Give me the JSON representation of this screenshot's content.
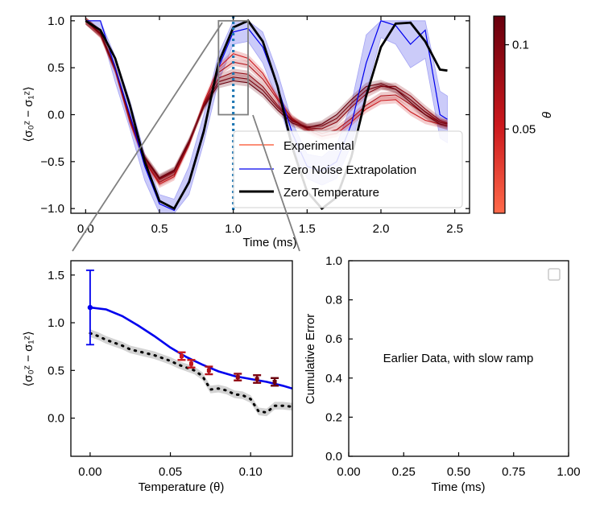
{
  "colors": {
    "experimental_light": "#fb6a4a",
    "experimental_dark": "#67000d",
    "zne": "#0000ee",
    "zne_band": "#6b6bee",
    "zero_temperature": "#000000",
    "marker_line": "#1f77b4",
    "inset_box": "#808080",
    "sim_band": "#c8c8c8"
  },
  "chart_data": [
    {
      "type": "line",
      "xlabel": "Time (ms)",
      "ylabel": "⟨σ₀ᶻ − σ₁ᶻ⟩",
      "xlim": [
        -0.1,
        2.6
      ],
      "ylim": [
        -1.05,
        1.05
      ],
      "xticks": [
        "0.0",
        "0.5",
        "1.0",
        "1.5",
        "2.0",
        "2.5"
      ],
      "yticks": [
        "−1.0",
        "−0.5",
        "0.0",
        "0.5",
        "1.0"
      ],
      "legend_position": "lower-right",
      "legend": [
        "Experimental",
        "Zero Noise Extrapolation",
        "Zero Temperature"
      ],
      "vertical_marker_x": 1.0,
      "zoom_box": {
        "x": [
          0.9,
          1.1
        ],
        "y": [
          0.0,
          1.0
        ]
      },
      "x": [
        0.0,
        0.1,
        0.2,
        0.3,
        0.4,
        0.5,
        0.6,
        0.7,
        0.8,
        0.9,
        1.0,
        1.1,
        1.2,
        1.3,
        1.4,
        1.5,
        1.6,
        1.7,
        1.8,
        1.9,
        2.0,
        2.1,
        2.2,
        2.3,
        2.4,
        2.45
      ],
      "series": [
        {
          "name": "Zero Temperature",
          "values": [
            1.0,
            0.9,
            0.6,
            0.1,
            -0.5,
            -0.92,
            -1.0,
            -0.72,
            -0.18,
            0.55,
            0.93,
            1.0,
            0.78,
            0.3,
            -0.35,
            -0.82,
            -1.0,
            -0.88,
            -0.45,
            0.2,
            0.72,
            0.97,
            0.98,
            0.78,
            0.48,
            0.47
          ]
        },
        {
          "name": "Zero Noise Extrapolation",
          "values": [
            1.0,
            1.0,
            0.5,
            0.0,
            -0.55,
            -0.95,
            -1.02,
            -0.7,
            -0.15,
            0.5,
            0.88,
            0.92,
            0.72,
            0.3,
            -0.2,
            -0.55,
            -0.6,
            -0.5,
            -0.1,
            0.55,
            1.0,
            0.95,
            0.75,
            0.9,
            0.0,
            -0.05
          ]
        },
        {
          "name": "Experimental",
          "values": [
            1.0,
            0.86,
            0.48,
            -0.05,
            -0.48,
            -0.7,
            -0.62,
            -0.3,
            0.1,
            0.42,
            0.55,
            0.5,
            0.35,
            0.12,
            -0.05,
            -0.15,
            -0.2,
            -0.16,
            -0.06,
            0.06,
            0.14,
            0.15,
            0.05,
            -0.05,
            -0.12,
            -0.14
          ]
        }
      ],
      "theta_traces": [
        {
          "theta": 0.057,
          "values": [
            1.0,
            0.85,
            0.47,
            -0.08,
            -0.5,
            -0.74,
            -0.66,
            -0.32,
            0.13,
            0.5,
            0.65,
            0.6,
            0.44,
            0.18,
            -0.05,
            -0.16,
            -0.23,
            -0.2,
            -0.08,
            0.06,
            0.15,
            0.16,
            0.03,
            -0.06,
            -0.1,
            -0.12
          ]
        },
        {
          "theta": 0.074,
          "values": [
            1.0,
            0.86,
            0.48,
            -0.06,
            -0.49,
            -0.72,
            -0.64,
            -0.31,
            0.11,
            0.45,
            0.56,
            0.53,
            0.38,
            0.16,
            -0.04,
            -0.15,
            -0.2,
            -0.16,
            -0.04,
            0.1,
            0.2,
            0.21,
            0.11,
            0.0,
            -0.08,
            -0.1
          ]
        },
        {
          "theta": 0.092,
          "values": [
            1.0,
            0.86,
            0.49,
            -0.04,
            -0.47,
            -0.69,
            -0.61,
            -0.3,
            0.1,
            0.39,
            0.45,
            0.43,
            0.3,
            0.1,
            -0.06,
            -0.14,
            -0.15,
            -0.08,
            0.08,
            0.22,
            0.3,
            0.3,
            0.2,
            0.06,
            -0.06,
            -0.09
          ]
        },
        {
          "theta": 0.104,
          "values": [
            1.0,
            0.87,
            0.5,
            -0.03,
            -0.46,
            -0.68,
            -0.6,
            -0.29,
            0.09,
            0.35,
            0.4,
            0.38,
            0.26,
            0.08,
            -0.07,
            -0.13,
            -0.12,
            -0.04,
            0.12,
            0.26,
            0.31,
            0.27,
            0.16,
            0.03,
            -0.08,
            -0.1
          ]
        },
        {
          "theta": 0.115,
          "values": [
            1.0,
            0.87,
            0.5,
            -0.02,
            -0.45,
            -0.67,
            -0.59,
            -0.28,
            0.08,
            0.32,
            0.36,
            0.34,
            0.22,
            0.05,
            -0.09,
            -0.14,
            -0.1,
            0.0,
            0.16,
            0.3,
            0.33,
            0.27,
            0.13,
            0.0,
            -0.1,
            -0.12
          ]
        }
      ],
      "zne_band": {
        "upper": [
          1.0,
          1.0,
          0.62,
          0.15,
          -0.42,
          -0.85,
          -0.9,
          -0.55,
          0.0,
          0.65,
          1.0,
          1.0,
          0.88,
          0.45,
          -0.08,
          -0.42,
          -0.45,
          -0.32,
          0.12,
          0.85,
          1.0,
          1.0,
          1.0,
          1.0,
          0.25,
          0.2
        ],
        "lower": [
          1.0,
          0.9,
          0.35,
          -0.15,
          -0.7,
          -1.05,
          -1.05,
          -0.85,
          -0.3,
          0.35,
          0.75,
          0.78,
          0.55,
          0.15,
          -0.35,
          -0.68,
          -0.75,
          -0.68,
          -0.32,
          0.25,
          0.82,
          0.75,
          0.5,
          0.6,
          -0.25,
          -0.3
        ]
      }
    },
    {
      "type": "scatter",
      "xlabel": "Temperature (θ)",
      "ylabel": "⟨σ₀ᶻ − σ₁ᶻ⟩",
      "xlim": [
        -0.012,
        0.126
      ],
      "ylim": [
        -0.4,
        1.65
      ],
      "xticks": [
        "0.00",
        "0.05",
        "0.10"
      ],
      "yticks": [
        "0.0",
        "0.5",
        "1.0",
        "1.5"
      ],
      "experimental": {
        "x": [
          0.057,
          0.063,
          0.074,
          0.092,
          0.104,
          0.115
        ],
        "values": [
          0.65,
          0.57,
          0.5,
          0.43,
          0.41,
          0.38
        ],
        "errors": [
          0.04,
          0.04,
          0.04,
          0.035,
          0.04,
          0.04
        ]
      },
      "extrapolation": {
        "x": [
          0.0,
          0.01,
          0.02,
          0.03,
          0.04,
          0.05,
          0.06,
          0.07,
          0.08,
          0.09,
          0.1,
          0.11,
          0.12,
          0.126
        ],
        "values": [
          1.16,
          1.14,
          1.07,
          0.97,
          0.86,
          0.74,
          0.64,
          0.56,
          0.49,
          0.44,
          0.41,
          0.38,
          0.34,
          0.31
        ],
        "zero_point": {
          "x": 0.0,
          "value": 1.16,
          "error": 0.39
        }
      },
      "simulation": {
        "x": [
          0.0,
          0.005,
          0.01,
          0.015,
          0.02,
          0.025,
          0.03,
          0.035,
          0.04,
          0.045,
          0.05,
          0.055,
          0.06,
          0.065,
          0.07,
          0.075,
          0.08,
          0.085,
          0.09,
          0.095,
          0.1,
          0.105,
          0.11,
          0.115,
          0.12,
          0.126
        ],
        "values": [
          0.89,
          0.86,
          0.82,
          0.79,
          0.76,
          0.72,
          0.7,
          0.68,
          0.66,
          0.63,
          0.6,
          0.56,
          0.53,
          0.5,
          0.44,
          0.3,
          0.31,
          0.29,
          0.25,
          0.24,
          0.2,
          0.07,
          0.06,
          0.13,
          0.13,
          0.12
        ],
        "band_halfwidth": 0.04
      }
    },
    {
      "type": "line",
      "xlabel": "Time (ms)",
      "ylabel": "Cumulative Error",
      "xlim": [
        0,
        1
      ],
      "ylim": [
        0,
        1
      ],
      "xticks": [
        "0.00",
        "0.25",
        "0.50",
        "0.75",
        "1.00"
      ],
      "yticks": [
        "0.0",
        "0.2",
        "0.4",
        "0.6",
        "0.8",
        "1.0"
      ],
      "annotation": "Earlier Data, with slow ramp",
      "empty_legend": true
    }
  ],
  "colorbar": {
    "label": "θ",
    "ticks": [
      {
        "value": 0.05,
        "label": "0.05"
      },
      {
        "value": 0.1,
        "label": "0.1"
      }
    ],
    "range": [
      0.0,
      0.117
    ],
    "cmap_start": "#fc9272",
    "cmap_mid": "#cb181d",
    "cmap_end": "#67000d"
  }
}
